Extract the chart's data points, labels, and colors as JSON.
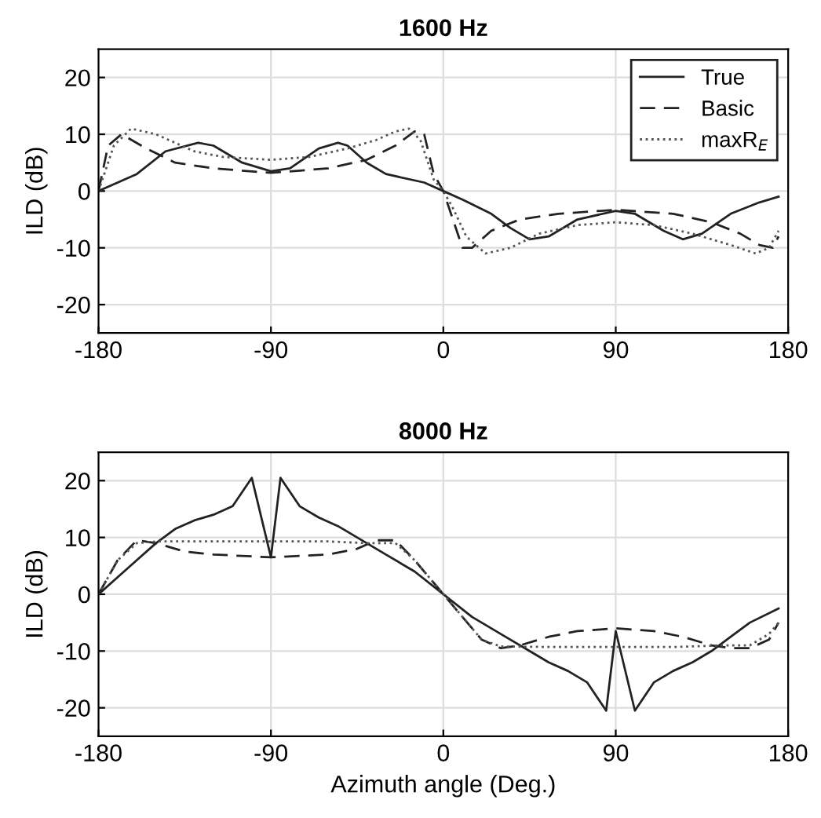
{
  "chart_data": [
    {
      "type": "line",
      "title": "1600 Hz",
      "ylabel": "ILD (dB)",
      "xlim": [
        -180,
        180
      ],
      "xticks": [
        -180,
        -90,
        0,
        90,
        180
      ],
      "ylim": [
        -25,
        25
      ],
      "yticks": [
        -20,
        -10,
        0,
        10,
        20
      ],
      "grid": true,
      "legend": "top right",
      "marker": "none",
      "series": [
        {
          "name": "True",
          "color": "#222222",
          "line_style": "solid",
          "x": [
            -180,
            -160,
            -145,
            -128,
            -120,
            -105,
            -90,
            -80,
            -65,
            -55,
            -50,
            -40,
            -30,
            -10,
            0,
            10,
            25,
            35,
            45,
            55,
            70,
            90,
            100,
            115,
            125,
            135,
            150,
            165,
            175
          ],
          "values": [
            0,
            3,
            7,
            8.5,
            8,
            5,
            3.5,
            4,
            7.5,
            8.5,
            8,
            5,
            3,
            1.5,
            0,
            -1.5,
            -4,
            -6.5,
            -8.5,
            -8,
            -5,
            -3.5,
            -4,
            -7,
            -8.5,
            -7.5,
            -4,
            -2,
            -1
          ]
        },
        {
          "name": "Basic",
          "color": "#222222",
          "line_style": "dashed",
          "x": [
            -180,
            -175,
            -168,
            -155,
            -140,
            -120,
            -90,
            -60,
            -40,
            -25,
            -15,
            -10,
            -5,
            0,
            5,
            10,
            15,
            25,
            40,
            60,
            90,
            120,
            140,
            155,
            165,
            172,
            175
          ],
          "values": [
            0,
            8,
            10,
            7.5,
            5,
            4,
            3.2,
            4,
            5.5,
            8,
            10.5,
            10,
            3,
            0,
            -5,
            -10,
            -10,
            -7,
            -5,
            -4,
            -3.3,
            -4,
            -5.5,
            -7.5,
            -9.5,
            -10,
            -8
          ]
        },
        {
          "name": "maxR$_{E}$",
          "color": "#555555",
          "line_style": "dotted",
          "x": [
            -180,
            -172,
            -163,
            -150,
            -130,
            -115,
            -90,
            -70,
            -50,
            -35,
            -25,
            -18,
            -12,
            -5,
            0,
            5,
            12,
            22,
            35,
            50,
            70,
            90,
            110,
            130,
            150,
            163,
            170,
            175
          ],
          "values": [
            0,
            8,
            11,
            10,
            7,
            6,
            5.5,
            6,
            7.5,
            9,
            10.5,
            11,
            9,
            2,
            0,
            -3,
            -8,
            -11,
            -10,
            -7.5,
            -6,
            -5.5,
            -6,
            -7.5,
            -9.5,
            -11,
            -10,
            -7
          ]
        }
      ]
    },
    {
      "type": "line",
      "title": "8000 Hz",
      "ylabel": "ILD (dB)",
      "xlabel": "Azimuth angle (Deg.)",
      "xlim": [
        -180,
        180
      ],
      "xticks": [
        -180,
        -90,
        0,
        90,
        180
      ],
      "ylim": [
        -25,
        25
      ],
      "yticks": [
        -20,
        -10,
        0,
        10,
        20
      ],
      "grid": true,
      "marker": "none",
      "series": [
        {
          "color": "#222222",
          "line_style": "solid",
          "x": [
            -180,
            -170,
            -160,
            -150,
            -140,
            -130,
            -120,
            -110,
            -100,
            -90,
            -85,
            -75,
            -65,
            -55,
            -45,
            -30,
            -15,
            0,
            15,
            30,
            45,
            55,
            65,
            75,
            85,
            90,
            100,
            110,
            120,
            130,
            140,
            150,
            160,
            175
          ],
          "values": [
            0,
            3,
            6,
            9,
            11.5,
            13,
            14,
            15.5,
            20.5,
            6.5,
            20.5,
            15.5,
            13.5,
            12,
            10,
            7,
            4,
            0,
            -4,
            -7,
            -10,
            -12,
            -13.5,
            -15.5,
            -20.5,
            -6.5,
            -20.5,
            -15.5,
            -13.5,
            -12,
            -10,
            -7.5,
            -5,
            -2.5
          ]
        },
        {
          "color": "#222222",
          "line_style": "dashed",
          "x": [
            -180,
            -170,
            -160,
            -150,
            -135,
            -120,
            -90,
            -60,
            -45,
            -35,
            -25,
            -15,
            -5,
            0,
            10,
            20,
            30,
            40,
            55,
            70,
            90,
            110,
            125,
            140,
            150,
            160,
            170,
            175
          ],
          "values": [
            0,
            6,
            9.5,
            9,
            7.5,
            7,
            6.5,
            7,
            8,
            9.5,
            9.5,
            6,
            2,
            0,
            -4,
            -8,
            -9.5,
            -9,
            -7.5,
            -6.5,
            -6,
            -6.5,
            -7.5,
            -9,
            -9.5,
            -9.5,
            -8,
            -5
          ]
        },
        {
          "color": "#555555",
          "line_style": "dotted",
          "x": [
            -180,
            -170,
            -160,
            -150,
            -120,
            -90,
            -60,
            -40,
            -25,
            -15,
            -5,
            0,
            10,
            20,
            30,
            60,
            90,
            120,
            145,
            160,
            170,
            175
          ],
          "values": [
            0,
            6,
            9,
            9.3,
            9.3,
            9.3,
            9.3,
            9,
            9,
            6,
            2,
            0,
            -4,
            -8,
            -9.2,
            -9.3,
            -9.3,
            -9.3,
            -9,
            -9,
            -7,
            -5
          ]
        }
      ]
    }
  ]
}
